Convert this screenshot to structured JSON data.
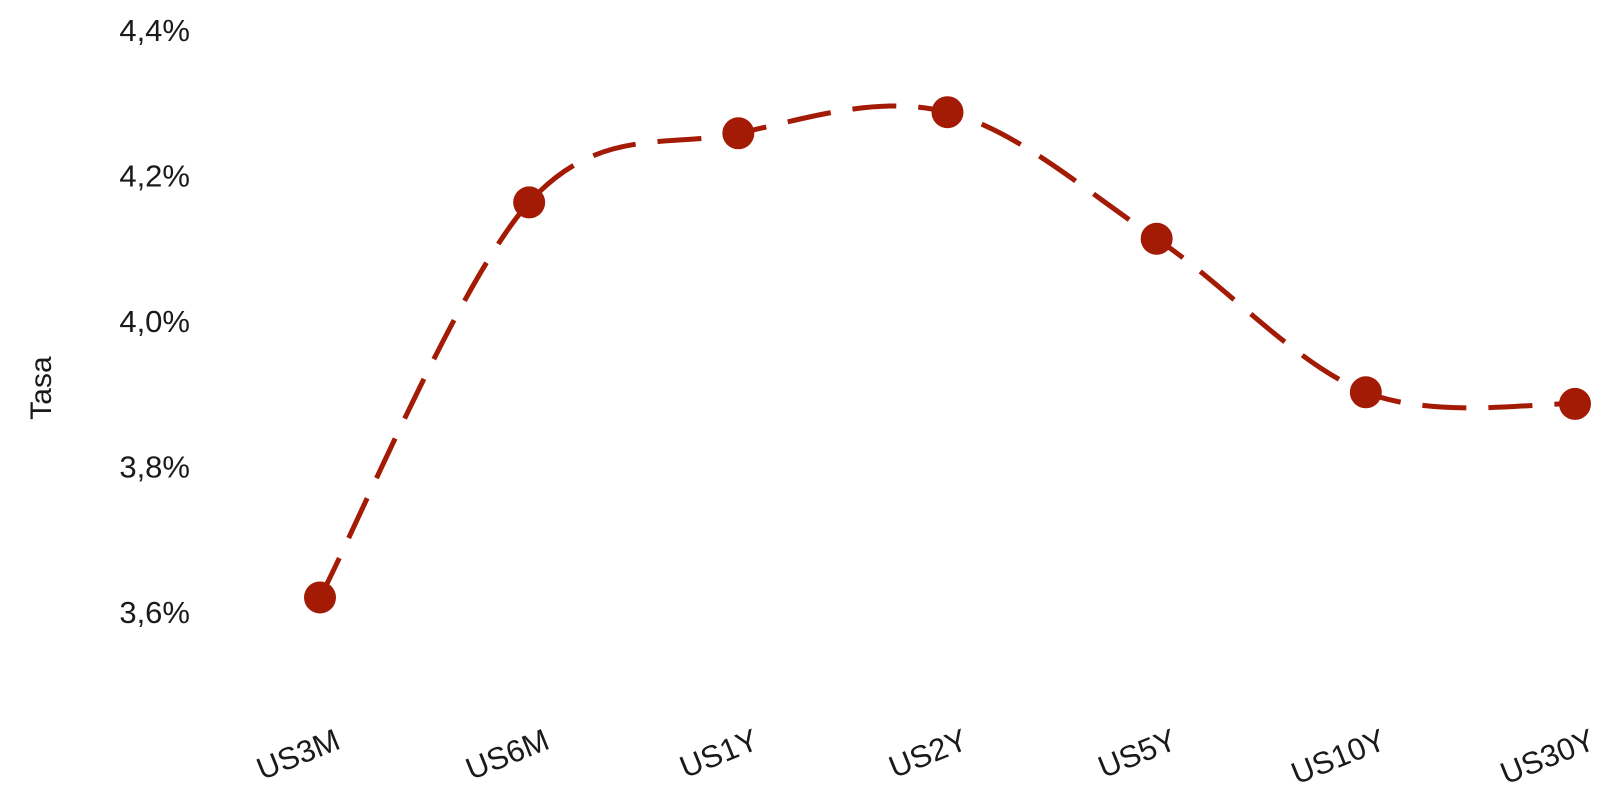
{
  "chart_data": {
    "type": "line",
    "title": "",
    "xlabel": "",
    "ylabel": "Tasa",
    "categories": [
      "US3M",
      "US6M",
      "US1Y",
      "US2Y",
      "US5Y",
      "US10Y",
      "US30Y"
    ],
    "series": [
      {
        "values": [
          3.62,
          4.163,
          4.258,
          4.287,
          4.113,
          3.902,
          3.886
        ]
      }
    ],
    "ylim": [
      3.5,
      4.42
    ],
    "yticks": [
      3.6,
      3.8,
      4.0,
      4.2,
      4.4
    ],
    "ytick_labels": [
      "3,6%",
      "3,8%",
      "4,0%",
      "4,2%",
      "4,4%"
    ],
    "grid": false,
    "legend": "none",
    "line_style": "dashed-smooth",
    "x_label_rotation": "angled",
    "colors": {
      "series": "#A31A05",
      "text": "#1a1a1a",
      "background": "#ffffff"
    }
  }
}
